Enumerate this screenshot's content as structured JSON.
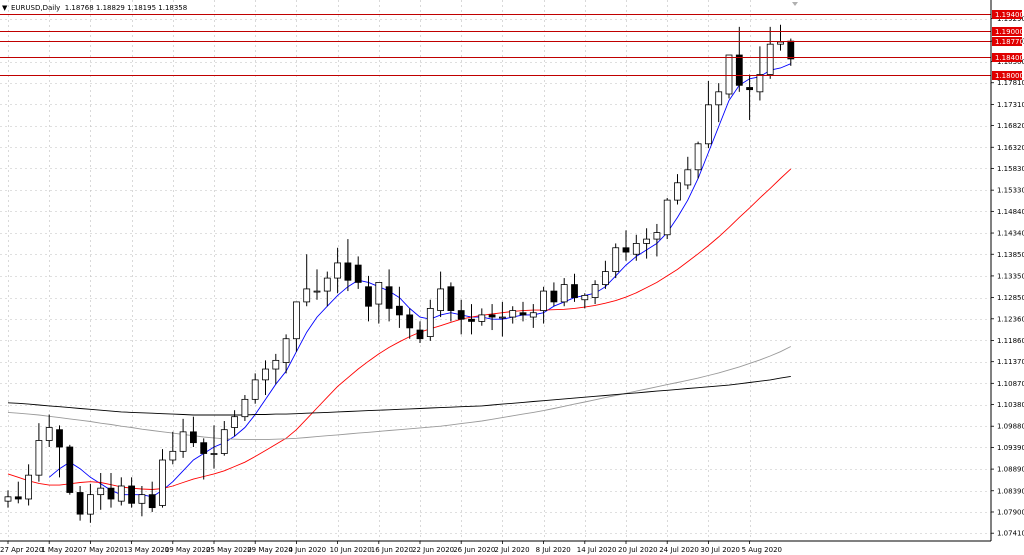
{
  "header": {
    "symbol_line": "EURUSD,Daily  1.18768 1.18829 1.18195 1.18358",
    "menu_glyph": "▼"
  },
  "colors": {
    "bull_body": "#ffffff",
    "bear_body": "#000000",
    "wick": "#000000",
    "ma_fast": "#0000ff",
    "ma_mid": "#ff0000",
    "ma_slow": "#9a9a9a",
    "ma_long": "#000000",
    "level_line": "#c00000",
    "level_label_bg": "#e00000",
    "grid": "#c0c0c0"
  },
  "chart_data": {
    "type": "candlestick",
    "symbol": "EURUSD",
    "timeframe": "Daily",
    "ohlc_header": {
      "open": 1.18768,
      "high": 1.18829,
      "low": 1.18195,
      "close": 1.18358
    },
    "ylim": [
      1.0723,
      1.1972
    ],
    "y_ticks": [
      "1.19290",
      "1.18770",
      "1.18300",
      "1.17810",
      "1.17310",
      "1.16820",
      "1.16320",
      "1.15830",
      "1.15330",
      "1.14840",
      "1.14340",
      "1.13850",
      "1.13350",
      "1.12850",
      "1.12360",
      "1.11860",
      "1.11370",
      "1.10870",
      "1.10380",
      "1.09880",
      "1.09390",
      "1.08890",
      "1.08390",
      "1.07900",
      "1.07410"
    ],
    "x_ticks": [
      {
        "label": "27 Apr 2020",
        "index": 0
      },
      {
        "label": "1 May 2020",
        "index": 4
      },
      {
        "label": "7 May 2020",
        "index": 8
      },
      {
        "label": "13 May 2020",
        "index": 12
      },
      {
        "label": "19 May 2020",
        "index": 16
      },
      {
        "label": "25 May 2020",
        "index": 20
      },
      {
        "label": "29 May 2020",
        "index": 24
      },
      {
        "label": "4 Jun 2020",
        "index": 28
      },
      {
        "label": "10 Jun 2020",
        "index": 32
      },
      {
        "label": "16 Jun 2020",
        "index": 36
      },
      {
        "label": "22 Jun 2020",
        "index": 40
      },
      {
        "label": "26 Jun 2020",
        "index": 44
      },
      {
        "label": "2 Jul 2020",
        "index": 48
      },
      {
        "label": "8 Jul 2020",
        "index": 52
      },
      {
        "label": "14 Jul 2020",
        "index": 56
      },
      {
        "label": "20 Jul 2020",
        "index": 60
      },
      {
        "label": "24 Jul 2020",
        "index": 64
      },
      {
        "label": "30 Jul 2020",
        "index": 68
      },
      {
        "label": "5 Aug 2020",
        "index": 72
      }
    ],
    "levels": [
      {
        "label": "1.19400",
        "value": 1.194
      },
      {
        "label": "1.19000",
        "value": 1.19
      },
      {
        "label": "1.18770",
        "value": 1.1877
      },
      {
        "label": "1.18400",
        "value": 1.184
      },
      {
        "label": "1.18000",
        "value": 1.18
      }
    ],
    "candles": [
      {
        "o": 1.0815,
        "h": 1.084,
        "l": 1.08,
        "c": 1.0825
      },
      {
        "o": 1.0825,
        "h": 1.086,
        "l": 1.081,
        "c": 1.082
      },
      {
        "o": 1.082,
        "h": 1.09,
        "l": 1.0805,
        "c": 1.0875
      },
      {
        "o": 1.0875,
        "h": 1.0995,
        "l": 1.086,
        "c": 1.0955
      },
      {
        "o": 1.0955,
        "h": 1.1015,
        "l": 1.094,
        "c": 1.0985
      },
      {
        "o": 1.098,
        "h": 1.099,
        "l": 1.087,
        "c": 1.094
      },
      {
        "o": 1.094,
        "h": 1.0945,
        "l": 1.083,
        "c": 1.0835
      },
      {
        "o": 1.0835,
        "h": 1.085,
        "l": 1.077,
        "c": 1.0785
      },
      {
        "o": 1.0785,
        "h": 1.0855,
        "l": 1.0765,
        "c": 1.083
      },
      {
        "o": 1.083,
        "h": 1.088,
        "l": 1.0795,
        "c": 1.0845
      },
      {
        "o": 1.0845,
        "h": 1.088,
        "l": 1.08,
        "c": 1.082
      },
      {
        "o": 1.0815,
        "h": 1.087,
        "l": 1.0805,
        "c": 1.085
      },
      {
        "o": 1.085,
        "h": 1.087,
        "l": 1.08,
        "c": 1.081
      },
      {
        "o": 1.081,
        "h": 1.085,
        "l": 1.078,
        "c": 1.083
      },
      {
        "o": 1.083,
        "h": 1.086,
        "l": 1.079,
        "c": 1.08
      },
      {
        "o": 1.0805,
        "h": 1.0935,
        "l": 1.08,
        "c": 1.091
      },
      {
        "o": 1.091,
        "h": 1.0975,
        "l": 1.09,
        "c": 1.093
      },
      {
        "o": 1.093,
        "h": 1.1005,
        "l": 1.0915,
        "c": 1.0975
      },
      {
        "o": 1.0975,
        "h": 1.101,
        "l": 1.094,
        "c": 1.095
      },
      {
        "o": 1.095,
        "h": 1.096,
        "l": 1.0865,
        "c": 1.0925
      },
      {
        "o": 1.0925,
        "h": 1.099,
        "l": 1.089,
        "c": 1.0925
      },
      {
        "o": 1.0925,
        "h": 1.1,
        "l": 1.092,
        "c": 1.098
      },
      {
        "o": 1.0985,
        "h": 1.1025,
        "l": 1.0965,
        "c": 1.101
      },
      {
        "o": 1.101,
        "h": 1.106,
        "l": 1.1,
        "c": 1.105
      },
      {
        "o": 1.105,
        "h": 1.111,
        "l": 1.104,
        "c": 1.1095
      },
      {
        "o": 1.1095,
        "h": 1.114,
        "l": 1.106,
        "c": 1.112
      },
      {
        "o": 1.112,
        "h": 1.1155,
        "l": 1.1085,
        "c": 1.114
      },
      {
        "o": 1.1135,
        "h": 1.12,
        "l": 1.111,
        "c": 1.119
      },
      {
        "o": 1.119,
        "h": 1.1275,
        "l": 1.116,
        "c": 1.1275
      },
      {
        "o": 1.1275,
        "h": 1.1385,
        "l": 1.1265,
        "c": 1.1305
      },
      {
        "o": 1.13,
        "h": 1.135,
        "l": 1.128,
        "c": 1.13
      },
      {
        "o": 1.13,
        "h": 1.1345,
        "l": 1.1265,
        "c": 1.133
      },
      {
        "o": 1.133,
        "h": 1.14,
        "l": 1.1295,
        "c": 1.1365
      },
      {
        "o": 1.1365,
        "h": 1.142,
        "l": 1.13,
        "c": 1.1325
      },
      {
        "o": 1.136,
        "h": 1.138,
        "l": 1.1305,
        "c": 1.132
      },
      {
        "o": 1.131,
        "h": 1.1335,
        "l": 1.123,
        "c": 1.1265
      },
      {
        "o": 1.127,
        "h": 1.132,
        "l": 1.1225,
        "c": 1.132
      },
      {
        "o": 1.131,
        "h": 1.135,
        "l": 1.123,
        "c": 1.126
      },
      {
        "o": 1.1265,
        "h": 1.131,
        "l": 1.1215,
        "c": 1.1245
      },
      {
        "o": 1.1245,
        "h": 1.126,
        "l": 1.119,
        "c": 1.1215
      },
      {
        "o": 1.121,
        "h": 1.123,
        "l": 1.118,
        "c": 1.119
      },
      {
        "o": 1.1195,
        "h": 1.128,
        "l": 1.1185,
        "c": 1.126
      },
      {
        "o": 1.1255,
        "h": 1.1345,
        "l": 1.124,
        "c": 1.1305
      },
      {
        "o": 1.131,
        "h": 1.132,
        "l": 1.123,
        "c": 1.1255
      },
      {
        "o": 1.1255,
        "h": 1.128,
        "l": 1.12,
        "c": 1.1235
      },
      {
        "o": 1.1235,
        "h": 1.127,
        "l": 1.12,
        "c": 1.123
      },
      {
        "o": 1.123,
        "h": 1.126,
        "l": 1.122,
        "c": 1.1245
      },
      {
        "o": 1.1245,
        "h": 1.127,
        "l": 1.121,
        "c": 1.124
      },
      {
        "o": 1.124,
        "h": 1.1275,
        "l": 1.1195,
        "c": 1.124
      },
      {
        "o": 1.124,
        "h": 1.1265,
        "l": 1.1225,
        "c": 1.1255
      },
      {
        "o": 1.125,
        "h": 1.1275,
        "l": 1.123,
        "c": 1.1245
      },
      {
        "o": 1.124,
        "h": 1.127,
        "l": 1.1215,
        "c": 1.125
      },
      {
        "o": 1.1255,
        "h": 1.131,
        "l": 1.1225,
        "c": 1.13
      },
      {
        "o": 1.13,
        "h": 1.132,
        "l": 1.1265,
        "c": 1.1275
      },
      {
        "o": 1.1275,
        "h": 1.133,
        "l": 1.1265,
        "c": 1.1315
      },
      {
        "o": 1.1315,
        "h": 1.134,
        "l": 1.1275,
        "c": 1.1285
      },
      {
        "o": 1.128,
        "h": 1.1295,
        "l": 1.126,
        "c": 1.129
      },
      {
        "o": 1.1285,
        "h": 1.1325,
        "l": 1.127,
        "c": 1.1315
      },
      {
        "o": 1.1315,
        "h": 1.137,
        "l": 1.1305,
        "c": 1.1345
      },
      {
        "o": 1.1345,
        "h": 1.141,
        "l": 1.133,
        "c": 1.14
      },
      {
        "o": 1.14,
        "h": 1.144,
        "l": 1.137,
        "c": 1.139
      },
      {
        "o": 1.1385,
        "h": 1.143,
        "l": 1.137,
        "c": 1.141
      },
      {
        "o": 1.141,
        "h": 1.1445,
        "l": 1.1375,
        "c": 1.142
      },
      {
        "o": 1.142,
        "h": 1.1455,
        "l": 1.138,
        "c": 1.1435
      },
      {
        "o": 1.143,
        "h": 1.1515,
        "l": 1.142,
        "c": 1.151
      },
      {
        "o": 1.151,
        "h": 1.157,
        "l": 1.15,
        "c": 1.155
      },
      {
        "o": 1.1545,
        "h": 1.161,
        "l": 1.1535,
        "c": 1.158
      },
      {
        "o": 1.158,
        "h": 1.1645,
        "l": 1.156,
        "c": 1.164
      },
      {
        "o": 1.164,
        "h": 1.1785,
        "l": 1.163,
        "c": 1.173
      },
      {
        "o": 1.173,
        "h": 1.178,
        "l": 1.169,
        "c": 1.176
      },
      {
        "o": 1.1755,
        "h": 1.1845,
        "l": 1.1745,
        "c": 1.1845
      },
      {
        "o": 1.1845,
        "h": 1.191,
        "l": 1.176,
        "c": 1.1775
      },
      {
        "o": 1.177,
        "h": 1.18,
        "l": 1.1695,
        "c": 1.1765
      },
      {
        "o": 1.176,
        "h": 1.1865,
        "l": 1.174,
        "c": 1.18
      },
      {
        "o": 1.18,
        "h": 1.191,
        "l": 1.179,
        "c": 1.187
      },
      {
        "o": 1.187,
        "h": 1.1915,
        "l": 1.1855,
        "c": 1.1875
      },
      {
        "o": 1.1877,
        "h": 1.1883,
        "l": 1.182,
        "c": 1.1836
      }
    ],
    "series": [
      {
        "type": "line",
        "color": "#0000ff",
        "values": [
          null,
          null,
          null,
          null,
          1.087,
          1.089,
          1.0905,
          1.089,
          1.087,
          1.0855,
          1.084,
          1.083,
          1.083,
          1.083,
          1.0825,
          1.084,
          1.086,
          1.0885,
          1.091,
          1.0925,
          1.094,
          1.095,
          1.0965,
          1.0985,
          1.1015,
          1.105,
          1.1085,
          1.1115,
          1.116,
          1.1205,
          1.124,
          1.1265,
          1.129,
          1.131,
          1.1325,
          1.132,
          1.131,
          1.13,
          1.1285,
          1.126,
          1.124,
          1.1235,
          1.1245,
          1.125,
          1.1245,
          1.124,
          1.124,
          1.1235,
          1.1235,
          1.124,
          1.1245,
          1.1245,
          1.125,
          1.1265,
          1.1275,
          1.1285,
          1.129,
          1.1295,
          1.131,
          1.1335,
          1.136,
          1.138,
          1.1395,
          1.141,
          1.1435,
          1.147,
          1.151,
          1.156,
          1.162,
          1.168,
          1.174,
          1.1775,
          1.179,
          1.1795,
          1.181,
          1.1815,
          1.1825
        ]
      },
      {
        "type": "line",
        "color": "#ff0000",
        "values": [
          1.0878,
          1.087,
          1.0862,
          1.0856,
          1.0852,
          1.0852,
          1.0855,
          1.0858,
          1.086,
          1.0858,
          1.0853,
          1.0848,
          1.0845,
          1.0843,
          1.0842,
          1.0844,
          1.085,
          1.0858,
          1.0866,
          1.0872,
          1.0878,
          1.0885,
          1.0895,
          1.0905,
          1.0918,
          1.0932,
          1.0946,
          1.096,
          1.098,
          1.1005,
          1.103,
          1.1055,
          1.108,
          1.11,
          1.112,
          1.1138,
          1.1155,
          1.117,
          1.1183,
          1.1195,
          1.1205,
          1.1213,
          1.122,
          1.1228,
          1.1235,
          1.124,
          1.1244,
          1.1247,
          1.125,
          1.1253,
          1.1255,
          1.1256,
          1.1256,
          1.1257,
          1.1258,
          1.126,
          1.1263,
          1.1267,
          1.1272,
          1.1278,
          1.1286,
          1.1296,
          1.1308,
          1.132,
          1.1335,
          1.135,
          1.1368,
          1.1386,
          1.1405,
          1.1425,
          1.1447,
          1.147,
          1.1492,
          1.1515,
          1.1537,
          1.156,
          1.1582
        ]
      },
      {
        "type": "line",
        "color": "#9a9a9a",
        "values": [
          1.102,
          1.1018,
          1.1016,
          1.1014,
          1.1011,
          1.1008,
          1.1005,
          1.1002,
          1.0999,
          1.0995,
          1.0992,
          1.0988,
          1.0985,
          1.0981,
          1.0978,
          1.0975,
          1.0972,
          1.0969,
          1.0966,
          1.0963,
          1.0961,
          1.0959,
          1.0958,
          1.0957,
          1.0957,
          1.0957,
          1.0958,
          1.0959,
          1.096,
          1.0962,
          1.0964,
          1.0966,
          1.0968,
          1.097,
          1.0972,
          1.0974,
          1.0976,
          1.0978,
          1.098,
          1.0982,
          1.0984,
          1.0986,
          1.0988,
          1.0991,
          1.0994,
          1.0997,
          1.1,
          1.1004,
          1.1008,
          1.1012,
          1.1016,
          1.102,
          1.1024,
          1.1029,
          1.1034,
          1.1039,
          1.1044,
          1.1049,
          1.1054,
          1.1059,
          1.1064,
          1.1069,
          1.1074,
          1.1079,
          1.1084,
          1.1089,
          1.1094,
          1.1099,
          1.1105,
          1.1111,
          1.1118,
          1.1125,
          1.1133,
          1.1141,
          1.115,
          1.116,
          1.1172
        ]
      },
      {
        "type": "line",
        "color": "#000000",
        "values": [
          1.1042,
          1.1041,
          1.1039,
          1.1037,
          1.1035,
          1.1033,
          1.1031,
          1.1029,
          1.1027,
          1.1025,
          1.1023,
          1.1021,
          1.102,
          1.1019,
          1.1018,
          1.1017,
          1.1016,
          1.1015,
          1.1014,
          1.1014,
          1.1014,
          1.1014,
          1.1014,
          1.1014,
          1.1015,
          1.1015,
          1.1016,
          1.1016,
          1.1017,
          1.1018,
          1.1019,
          1.102,
          1.1021,
          1.1022,
          1.1023,
          1.1024,
          1.1025,
          1.1026,
          1.1027,
          1.1028,
          1.1029,
          1.103,
          1.1031,
          1.1032,
          1.1033,
          1.1034,
          1.1035,
          1.1037,
          1.1039,
          1.1041,
          1.1043,
          1.1045,
          1.1047,
          1.1049,
          1.1051,
          1.1053,
          1.1055,
          1.1057,
          1.1059,
          1.1061,
          1.1063,
          1.1065,
          1.1067,
          1.1069,
          1.1071,
          1.1073,
          1.1075,
          1.1077,
          1.1079,
          1.1081,
          1.1083,
          1.1086,
          1.1089,
          1.1092,
          1.1095,
          1.1099,
          1.1103
        ]
      }
    ]
  }
}
